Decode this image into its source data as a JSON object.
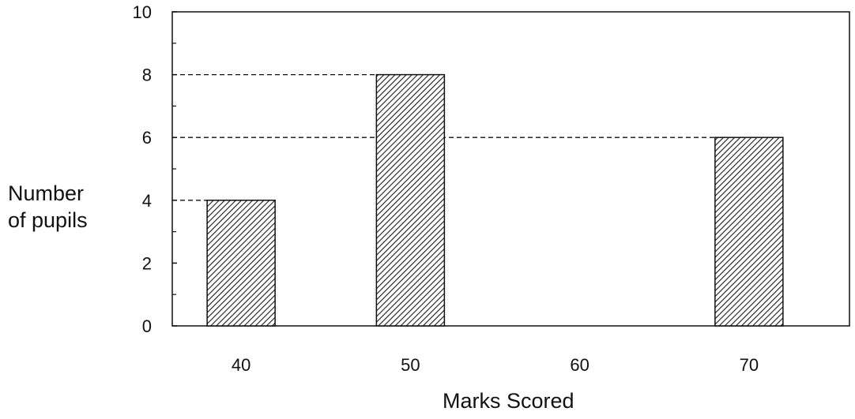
{
  "chart_data": {
    "type": "bar",
    "categories": [
      "40",
      "50",
      "60",
      "70"
    ],
    "values": [
      4,
      8,
      0,
      6
    ],
    "title": "",
    "xlabel": "Marks Scored",
    "ylabel_line1": "Number",
    "ylabel_line2": "of pupils",
    "ylim": [
      0,
      10
    ],
    "yticks": [
      "0",
      "2",
      "4",
      "6",
      "8",
      "10"
    ],
    "bar_fill": "hatched",
    "colors": {
      "bar": "#ffffff",
      "hatch": "#1a1a1a",
      "axis": "#111111"
    },
    "reference_lines": [
      8,
      6,
      4
    ],
    "grid": false
  }
}
